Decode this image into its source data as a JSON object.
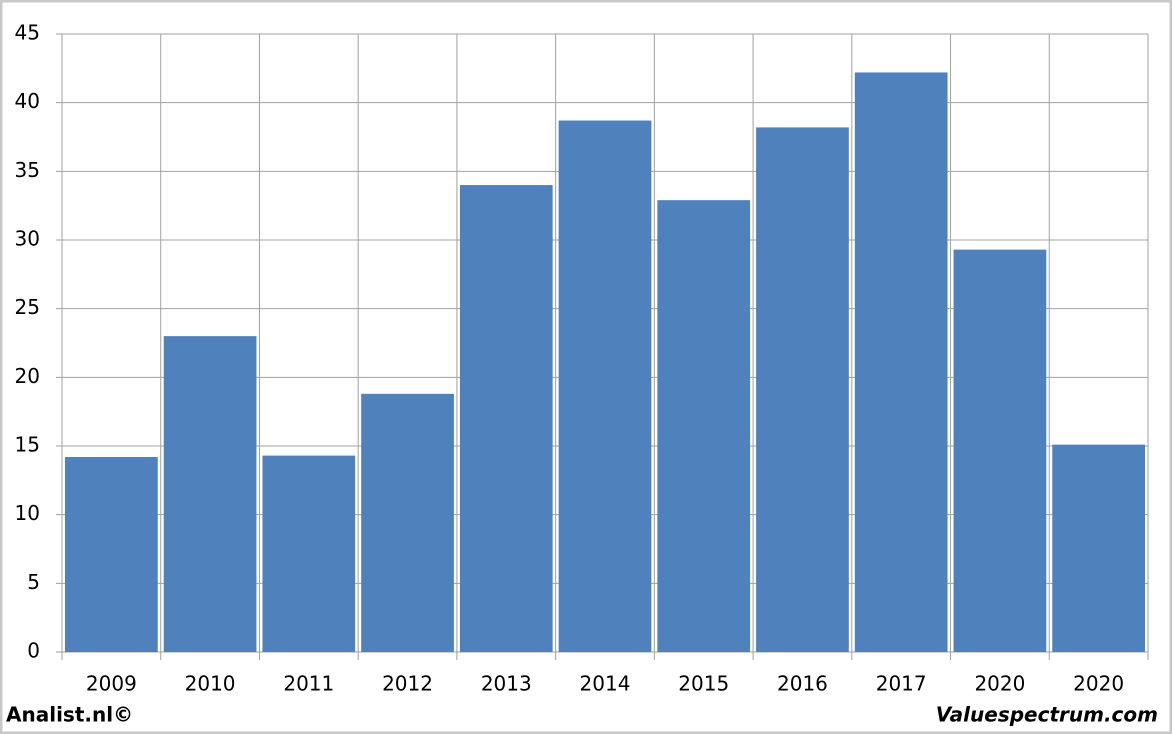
{
  "chart_data": {
    "type": "bar",
    "categories": [
      "2009",
      "2010",
      "2011",
      "2012",
      "2013",
      "2014",
      "2015",
      "2016",
      "2017",
      "2020",
      "2020"
    ],
    "values": [
      14.2,
      23.0,
      14.3,
      18.8,
      34.0,
      38.7,
      32.9,
      38.2,
      42.2,
      29.3,
      15.1
    ],
    "color": "#4f81bd",
    "ylim": [
      0,
      45
    ],
    "yticks": [
      0,
      5,
      10,
      15,
      20,
      25,
      30,
      35,
      40,
      45
    ],
    "grid": true
  },
  "footer": {
    "left": "Analist.nl©",
    "right": "Valuespectrum.com"
  }
}
